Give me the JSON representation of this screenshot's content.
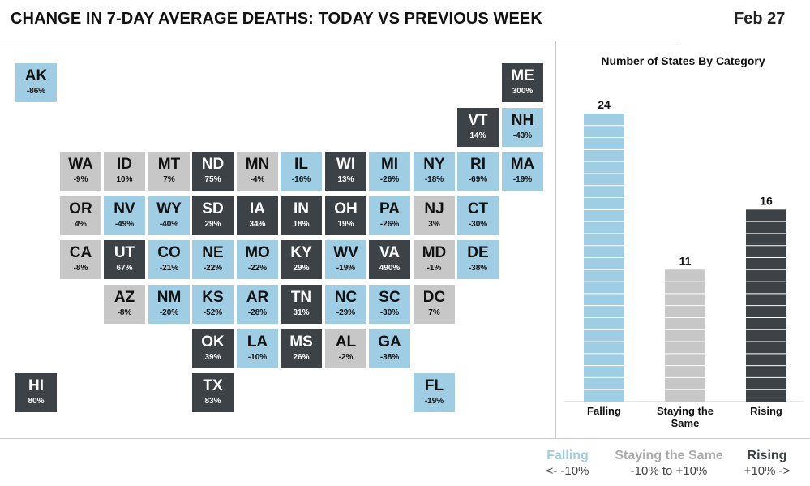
{
  "header": {
    "title": "CHANGE IN 7-DAY AVERAGE DEATHS: TODAY VS PREVIOUS WEEK",
    "date": "Feb 27"
  },
  "colors": {
    "falling": "#9fcde3",
    "same": "#c7c7c7",
    "rising": "#3d4247"
  },
  "states": [
    {
      "abbr": "AK",
      "pct": "-86%",
      "cat": "falling",
      "row": 0,
      "col": 0
    },
    {
      "abbr": "ME",
      "pct": "300%",
      "cat": "rising",
      "row": 0,
      "col": 11
    },
    {
      "abbr": "VT",
      "pct": "14%",
      "cat": "rising",
      "row": 1,
      "col": 10
    },
    {
      "abbr": "NH",
      "pct": "-43%",
      "cat": "falling",
      "row": 1,
      "col": 11
    },
    {
      "abbr": "WA",
      "pct": "-9%",
      "cat": "same",
      "row": 2,
      "col": 1
    },
    {
      "abbr": "ID",
      "pct": "10%",
      "cat": "same",
      "row": 2,
      "col": 2
    },
    {
      "abbr": "MT",
      "pct": "7%",
      "cat": "same",
      "row": 2,
      "col": 3
    },
    {
      "abbr": "ND",
      "pct": "75%",
      "cat": "rising",
      "row": 2,
      "col": 4
    },
    {
      "abbr": "MN",
      "pct": "-4%",
      "cat": "same",
      "row": 2,
      "col": 5
    },
    {
      "abbr": "IL",
      "pct": "-16%",
      "cat": "falling",
      "row": 2,
      "col": 6
    },
    {
      "abbr": "WI",
      "pct": "13%",
      "cat": "rising",
      "row": 2,
      "col": 7
    },
    {
      "abbr": "MI",
      "pct": "-26%",
      "cat": "falling",
      "row": 2,
      "col": 8
    },
    {
      "abbr": "NY",
      "pct": "-18%",
      "cat": "falling",
      "row": 2,
      "col": 9
    },
    {
      "abbr": "RI",
      "pct": "-69%",
      "cat": "falling",
      "row": 2,
      "col": 10
    },
    {
      "abbr": "MA",
      "pct": "-19%",
      "cat": "falling",
      "row": 2,
      "col": 11
    },
    {
      "abbr": "OR",
      "pct": "4%",
      "cat": "same",
      "row": 3,
      "col": 1
    },
    {
      "abbr": "NV",
      "pct": "-49%",
      "cat": "falling",
      "row": 3,
      "col": 2
    },
    {
      "abbr": "WY",
      "pct": "-40%",
      "cat": "falling",
      "row": 3,
      "col": 3
    },
    {
      "abbr": "SD",
      "pct": "29%",
      "cat": "rising",
      "row": 3,
      "col": 4
    },
    {
      "abbr": "IA",
      "pct": "34%",
      "cat": "rising",
      "row": 3,
      "col": 5
    },
    {
      "abbr": "IN",
      "pct": "18%",
      "cat": "rising",
      "row": 3,
      "col": 6
    },
    {
      "abbr": "OH",
      "pct": "19%",
      "cat": "rising",
      "row": 3,
      "col": 7
    },
    {
      "abbr": "PA",
      "pct": "-26%",
      "cat": "falling",
      "row": 3,
      "col": 8
    },
    {
      "abbr": "NJ",
      "pct": "3%",
      "cat": "same",
      "row": 3,
      "col": 9
    },
    {
      "abbr": "CT",
      "pct": "-30%",
      "cat": "falling",
      "row": 3,
      "col": 10
    },
    {
      "abbr": "CA",
      "pct": "-8%",
      "cat": "same",
      "row": 4,
      "col": 1
    },
    {
      "abbr": "UT",
      "pct": "67%",
      "cat": "rising",
      "row": 4,
      "col": 2
    },
    {
      "abbr": "CO",
      "pct": "-21%",
      "cat": "falling",
      "row": 4,
      "col": 3
    },
    {
      "abbr": "NE",
      "pct": "-22%",
      "cat": "falling",
      "row": 4,
      "col": 4
    },
    {
      "abbr": "MO",
      "pct": "-22%",
      "cat": "falling",
      "row": 4,
      "col": 5
    },
    {
      "abbr": "KY",
      "pct": "29%",
      "cat": "rising",
      "row": 4,
      "col": 6
    },
    {
      "abbr": "WV",
      "pct": "-19%",
      "cat": "falling",
      "row": 4,
      "col": 7
    },
    {
      "abbr": "VA",
      "pct": "490%",
      "cat": "rising",
      "row": 4,
      "col": 8
    },
    {
      "abbr": "MD",
      "pct": "-1%",
      "cat": "same",
      "row": 4,
      "col": 9
    },
    {
      "abbr": "DE",
      "pct": "-38%",
      "cat": "falling",
      "row": 4,
      "col": 10
    },
    {
      "abbr": "AZ",
      "pct": "-8%",
      "cat": "same",
      "row": 5,
      "col": 2
    },
    {
      "abbr": "NM",
      "pct": "-20%",
      "cat": "falling",
      "row": 5,
      "col": 3
    },
    {
      "abbr": "KS",
      "pct": "-52%",
      "cat": "falling",
      "row": 5,
      "col": 4
    },
    {
      "abbr": "AR",
      "pct": "-28%",
      "cat": "falling",
      "row": 5,
      "col": 5
    },
    {
      "abbr": "TN",
      "pct": "31%",
      "cat": "rising",
      "row": 5,
      "col": 6
    },
    {
      "abbr": "NC",
      "pct": "-29%",
      "cat": "falling",
      "row": 5,
      "col": 7
    },
    {
      "abbr": "SC",
      "pct": "-30%",
      "cat": "falling",
      "row": 5,
      "col": 8
    },
    {
      "abbr": "DC",
      "pct": "7%",
      "cat": "same",
      "row": 5,
      "col": 9
    },
    {
      "abbr": "OK",
      "pct": "39%",
      "cat": "rising",
      "row": 6,
      "col": 4
    },
    {
      "abbr": "LA",
      "pct": "-10%",
      "cat": "falling",
      "row": 6,
      "col": 5
    },
    {
      "abbr": "MS",
      "pct": "26%",
      "cat": "rising",
      "row": 6,
      "col": 6
    },
    {
      "abbr": "AL",
      "pct": "-2%",
      "cat": "same",
      "row": 6,
      "col": 7
    },
    {
      "abbr": "GA",
      "pct": "-38%",
      "cat": "falling",
      "row": 6,
      "col": 8
    },
    {
      "abbr": "HI",
      "pct": "80%",
      "cat": "rising",
      "row": 7,
      "col": 0
    },
    {
      "abbr": "TX",
      "pct": "83%",
      "cat": "rising",
      "row": 7,
      "col": 4
    },
    {
      "abbr": "FL",
      "pct": "-19%",
      "cat": "falling",
      "row": 7,
      "col": 9
    }
  ],
  "chart_data": {
    "type": "bar",
    "title": "Number of States By Category",
    "categories": [
      "Falling",
      "Staying the Same",
      "Rising"
    ],
    "values": [
      24,
      11,
      16
    ],
    "colors": [
      "#9fcde3",
      "#c7c7c7",
      "#3d4247"
    ],
    "ylim": [
      0,
      24
    ],
    "grid": false,
    "xlabel": "",
    "ylabel": ""
  },
  "legend": [
    {
      "name": "Falling",
      "range": "<-  -10%",
      "color": "#9fcde3"
    },
    {
      "name": "Staying the Same",
      "range": "-10% to +10%",
      "color": "#aaaaaa"
    },
    {
      "name": "Rising",
      "range": "+10%  ->",
      "color": "#3d4247"
    }
  ]
}
